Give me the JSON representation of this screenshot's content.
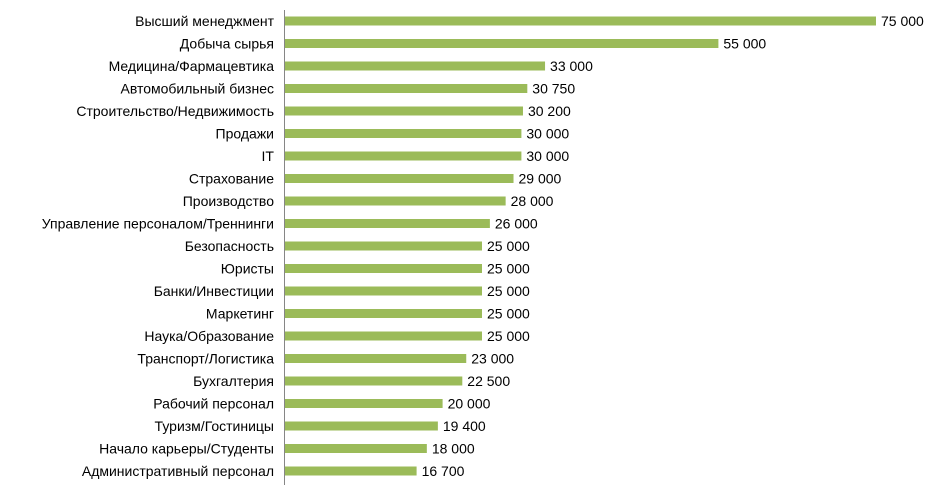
{
  "chart_data": {
    "type": "bar",
    "orientation": "horizontal",
    "categories": [
      "Высший менеджмент",
      "Добыча сырья",
      "Медицина/Фармацевтика",
      "Автомобильный бизнес",
      "Строительство/Недвижимость",
      "Продажи",
      "IT",
      "Страхование",
      "Производство",
      "Управление персоналом/Треннинги",
      "Безопасность",
      "Юристы",
      "Банки/Инвестиции",
      "Маркетинг",
      "Наука/Образование",
      "Транспорт/Логистика",
      "Бухгалтерия",
      "Рабочий персонал",
      "Туризм/Гостиницы",
      "Начало карьеры/Студенты",
      "Административный персонал"
    ],
    "values": [
      75000,
      55000,
      33000,
      30750,
      30200,
      30000,
      30000,
      29000,
      28000,
      26000,
      25000,
      25000,
      25000,
      25000,
      25000,
      23000,
      22500,
      20000,
      19400,
      18000,
      16700
    ],
    "value_labels": [
      "75 000",
      "55 000",
      "33 000",
      "30 750",
      "30 200",
      "30 000",
      "30 000",
      "29 000",
      "28 000",
      "26 000",
      "25 000",
      "25 000",
      "25 000",
      "25 000",
      "25 000",
      "23 000",
      "22 500",
      "20 000",
      "19 400",
      "18 000",
      "16 700"
    ],
    "xlim": [
      0,
      75000
    ],
    "grid": false,
    "bar_color": "#9BBB59",
    "title": "",
    "xlabel": "",
    "ylabel": ""
  }
}
